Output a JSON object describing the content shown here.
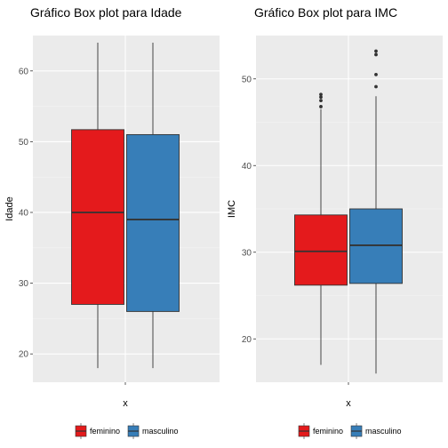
{
  "chart_data": [
    {
      "type": "boxplot",
      "title": "Gráfico Box plot para Idade",
      "xlabel": "x",
      "ylabel": "Idade",
      "ylim": [
        16,
        65
      ],
      "yticks": [
        20,
        30,
        40,
        50,
        60
      ],
      "grid": true,
      "series": [
        {
          "name": "feminino",
          "color": "#e41a1c",
          "whisker_low": 18,
          "q1": 27,
          "median": 40,
          "q3": 51.7,
          "whisker_high": 64,
          "outliers": []
        },
        {
          "name": "masculino",
          "color": "#377eb8",
          "whisker_low": 18,
          "q1": 26,
          "median": 39,
          "q3": 51,
          "whisker_high": 64,
          "outliers": []
        }
      ]
    },
    {
      "type": "boxplot",
      "title": "Gráfico Box plot para IMC",
      "xlabel": "x",
      "ylabel": "IMC",
      "ylim": [
        15,
        55
      ],
      "yticks": [
        20,
        30,
        40,
        50
      ],
      "grid": true,
      "series": [
        {
          "name": "feminino",
          "color": "#e41a1c",
          "whisker_low": 17,
          "q1": 26.2,
          "median": 30.1,
          "q3": 34.3,
          "whisker_high": 46.5,
          "outliers": [
            46.8,
            47.5,
            47.9,
            48.2
          ]
        },
        {
          "name": "masculino",
          "color": "#377eb8",
          "whisker_low": 16,
          "q1": 26.4,
          "median": 30.8,
          "q3": 35,
          "whisker_high": 48,
          "outliers": [
            49.1,
            50.5,
            52.8,
            53.2
          ]
        }
      ]
    }
  ],
  "legend": {
    "position": "bottom",
    "entries": [
      {
        "name": "feminino",
        "color": "#e41a1c"
      },
      {
        "name": "masculino",
        "color": "#377eb8"
      }
    ]
  }
}
